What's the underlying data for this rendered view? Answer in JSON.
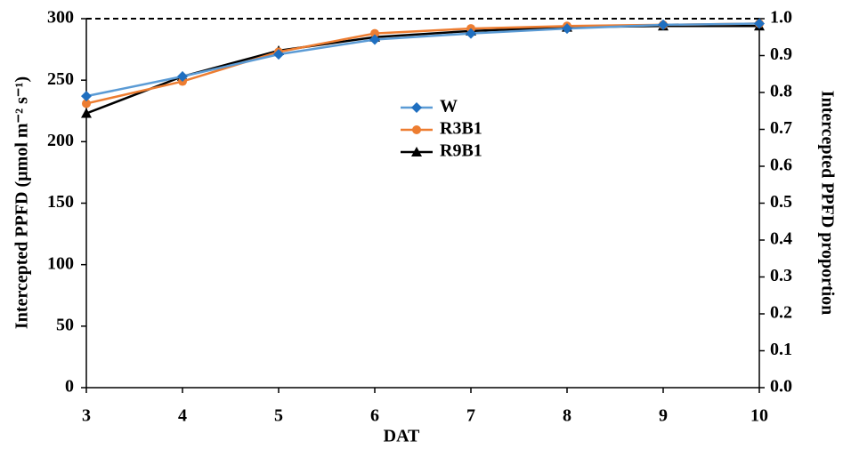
{
  "chart_data": {
    "type": "line",
    "x_label": "DAT",
    "y_label": "Intercepted PPFD (µmol m⁻² s⁻¹)",
    "y2_label": "Intercepted PPFD proportion",
    "x": [
      3,
      4,
      5,
      6,
      7,
      8,
      9,
      10
    ],
    "xlim": [
      3,
      10
    ],
    "xticks": [
      3,
      4,
      5,
      6,
      7,
      8,
      9,
      10
    ],
    "ylim": [
      0,
      300
    ],
    "yticks": [
      0,
      50,
      100,
      150,
      200,
      250,
      300
    ],
    "y2lim": [
      0,
      1
    ],
    "y2ticks": [
      {
        "value": 0,
        "label": "0.0"
      },
      0.1,
      0.2,
      0.3,
      0.4,
      0.5,
      0.6,
      0.7,
      0.8,
      0.9,
      {
        "value": 1,
        "label": "1.0"
      }
    ],
    "reference_line": 300,
    "grid": false,
    "legend": "center",
    "series": [
      {
        "name": "W",
        "color": "#5b9bd5",
        "marker": "diamond",
        "values": [
          237,
          253,
          271,
          283,
          288,
          292,
          295,
          296
        ]
      },
      {
        "name": "R3B1",
        "color": "#ed7d31",
        "marker": "circle",
        "values": [
          231,
          249,
          273,
          288,
          292,
          294,
          295,
          296
        ]
      },
      {
        "name": "R9B1",
        "color": "#000000",
        "marker": "triangle",
        "values": [
          223,
          253,
          274,
          285,
          290,
          293,
          294,
          294
        ]
      }
    ]
  }
}
